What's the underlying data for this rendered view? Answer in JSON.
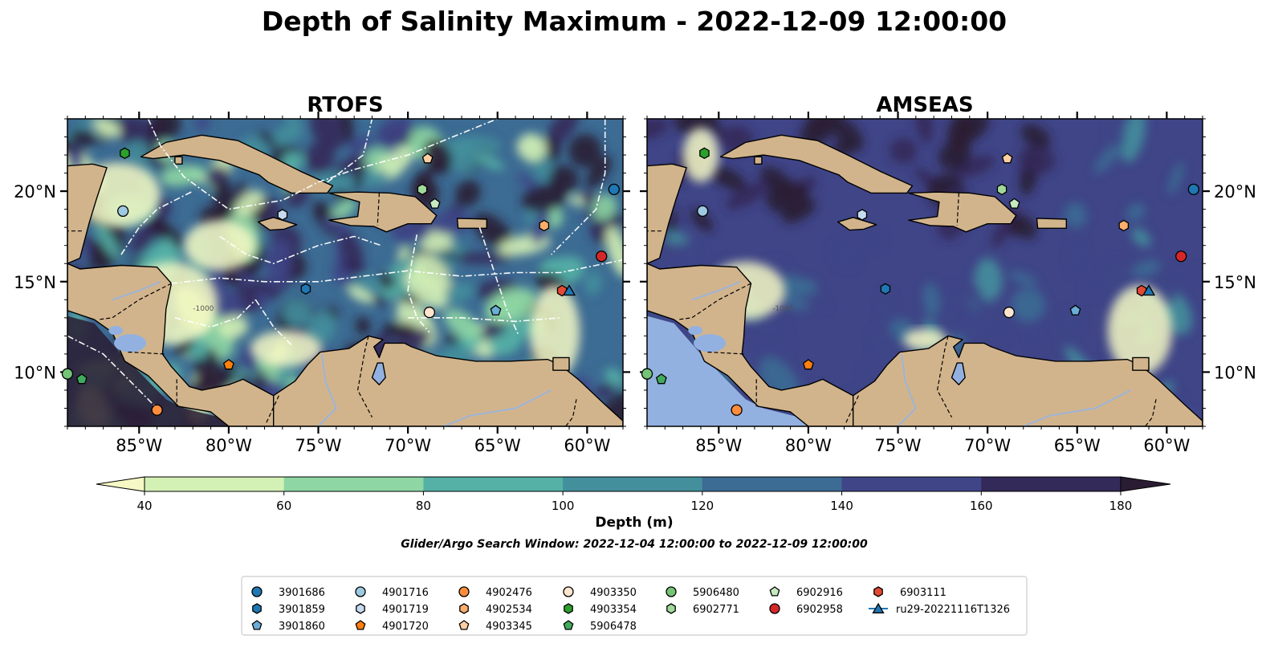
{
  "chart_data": {
    "type": "heatmap",
    "title": "Depth of Salinity Maximum - 2022-12-09 12:00:00",
    "panels": [
      {
        "name": "RTOFS",
        "field_level": "mixed"
      },
      {
        "name": "AMSEAS",
        "field_level": "deep"
      }
    ],
    "x_ticks": [
      -85,
      -80,
      -75,
      -70,
      -65,
      -60
    ],
    "x_tick_labels": [
      "85°W",
      "80°W",
      "75°W",
      "70°W",
      "65°W",
      "60°W"
    ],
    "y_ticks": [
      10,
      15,
      20
    ],
    "y_tick_labels": [
      "10°N",
      "15°N",
      "20°N"
    ],
    "xlim": [
      -89,
      -58
    ],
    "ylim": [
      7,
      24
    ],
    "colorbar": {
      "label": "Depth (m)",
      "levels": [
        40,
        60,
        80,
        100,
        120,
        140,
        160,
        180
      ],
      "tick_labels": [
        "40",
        "60",
        "80",
        "100",
        "120",
        "140",
        "160",
        "180"
      ],
      "colors": [
        "#f6f9c4",
        "#d3f0b5",
        "#8ed6a3",
        "#55b1a6",
        "#438f9c",
        "#3c6b93",
        "#3f4587",
        "#332a5a",
        "#2a1c33"
      ],
      "extend": "both"
    },
    "subtitle": "Glider/Argo Search Window: 2022-12-04 12:00:00 to 2022-12-09 12:00:00",
    "isobath_label": "-1000",
    "markers": [
      {
        "id": "3901686",
        "lon": -58.5,
        "lat": 20.1,
        "shape": "circle",
        "color": "#1f77b4"
      },
      {
        "id": "3901859",
        "lon": -75.7,
        "lat": 14.6,
        "shape": "hexagon",
        "color": "#1f77b4"
      },
      {
        "id": "3901860",
        "lon": -65.1,
        "lat": 13.4,
        "shape": "pentagon",
        "color": "#6aaed6"
      },
      {
        "id": "4901716",
        "lon": -85.9,
        "lat": 18.9,
        "shape": "circle",
        "color": "#9ecae1"
      },
      {
        "id": "4901719",
        "lon": -77.0,
        "lat": 18.7,
        "shape": "hexagon",
        "color": "#c6dbef"
      },
      {
        "id": "4901720",
        "lon": -80.0,
        "lat": 10.4,
        "shape": "pentagon",
        "color": "#ff7f0e"
      },
      {
        "id": "4902476",
        "lon": -84.0,
        "lat": 7.9,
        "shape": "circle",
        "color": "#fd8d3c"
      },
      {
        "id": "4902534",
        "lon": -62.4,
        "lat": 18.1,
        "shape": "hexagon",
        "color": "#fdae6b"
      },
      {
        "id": "4903345",
        "lon": -68.9,
        "lat": 21.8,
        "shape": "pentagon",
        "color": "#fdd0a2"
      },
      {
        "id": "4903350",
        "lon": -68.8,
        "lat": 13.3,
        "shape": "circle",
        "color": "#fee6ce"
      },
      {
        "id": "4903354",
        "lon": -85.8,
        "lat": 22.1,
        "shape": "hexagon",
        "color": "#2ca02c"
      },
      {
        "id": "5906478",
        "lon": -88.2,
        "lat": 9.6,
        "shape": "pentagon",
        "color": "#41ab5d"
      },
      {
        "id": "5906480",
        "lon": -89.0,
        "lat": 9.9,
        "shape": "circle",
        "color": "#74c476"
      },
      {
        "id": "6902771",
        "lon": -69.2,
        "lat": 20.1,
        "shape": "hexagon",
        "color": "#a1d99b"
      },
      {
        "id": "6902916",
        "lon": -68.5,
        "lat": 19.3,
        "shape": "pentagon",
        "color": "#c7e9c0"
      },
      {
        "id": "6902958",
        "lon": -59.2,
        "lat": 16.4,
        "shape": "circle",
        "color": "#d62728"
      },
      {
        "id": "6903111",
        "lon": -61.4,
        "lat": 14.5,
        "shape": "hexagon",
        "color": "#e34a33"
      },
      {
        "id": "ru29-20221116T1326",
        "lon": -61.0,
        "lat": 14.5,
        "shape": "triangle",
        "color": "#1f77b4"
      }
    ]
  },
  "legend": {
    "columns": [
      [
        "3901686",
        "3901859",
        "3901860"
      ],
      [
        "4901716",
        "4901719",
        "4901720"
      ],
      [
        "4902476",
        "4902534",
        "4903345"
      ],
      [
        "4903350",
        "4903354",
        "5906478"
      ],
      [
        "5906480",
        "6902771"
      ],
      [
        "6902916",
        "6902958"
      ],
      [
        "6903111",
        "ru29-20221116T1326"
      ]
    ]
  }
}
